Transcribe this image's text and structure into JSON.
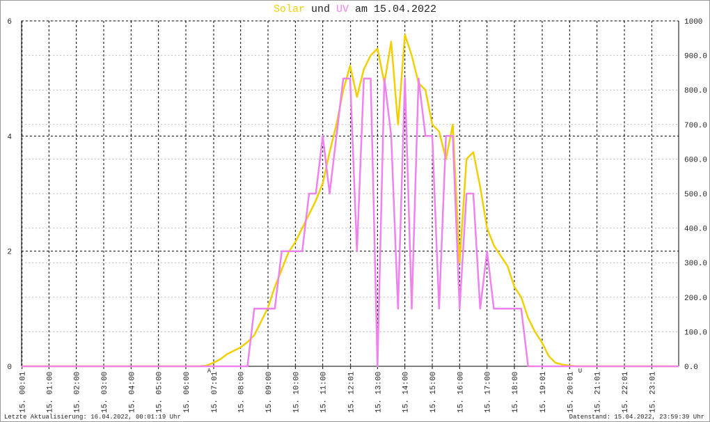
{
  "chart_data": {
    "type": "line",
    "title_join": "und",
    "title_suffix": "am 15.04.2022",
    "x": [
      0,
      6.5,
      6.75,
      7,
      7.25,
      7.5,
      7.75,
      8,
      8.25,
      8.5,
      8.75,
      9,
      9.25,
      9.5,
      9.75,
      10,
      10.25,
      10.5,
      10.75,
      11,
      11.25,
      11.5,
      11.75,
      12,
      12.25,
      12.5,
      12.75,
      13,
      13.25,
      13.5,
      13.75,
      14,
      14.25,
      14.5,
      14.75,
      15,
      15.25,
      15.5,
      15.75,
      16,
      16.25,
      16.5,
      16.75,
      17,
      17.25,
      17.5,
      17.75,
      18,
      18.25,
      18.5,
      18.75,
      19,
      19.25,
      19.5,
      19.75,
      20,
      20.25,
      24
    ],
    "series": [
      {
        "name": "Solar",
        "color": "#f2cf00",
        "axis": "y2",
        "values": [
          0,
          0,
          2,
          10,
          20,
          35,
          45,
          55,
          70,
          90,
          130,
          170,
          230,
          280,
          330,
          360,
          400,
          440,
          480,
          530,
          620,
          700,
          800,
          870,
          780,
          860,
          900,
          920,
          820,
          940,
          700,
          960,
          900,
          820,
          800,
          700,
          680,
          600,
          700,
          300,
          600,
          620,
          520,
          400,
          350,
          320,
          290,
          230,
          200,
          140,
          100,
          70,
          30,
          10,
          5,
          2,
          0,
          0
        ]
      },
      {
        "name": "UV",
        "color": "#ee82ee",
        "values": [
          0,
          0,
          0,
          0,
          0,
          0,
          0,
          0,
          0,
          1,
          1,
          1,
          1,
          2,
          2,
          2,
          2,
          3,
          3,
          4,
          3,
          4,
          5,
          5,
          2,
          5,
          5,
          0,
          5,
          4,
          1,
          5,
          1,
          5,
          4,
          4,
          1,
          4,
          4,
          1,
          3,
          3,
          1,
          2,
          1,
          1,
          1,
          1,
          1,
          0,
          0,
          0,
          0,
          0,
          0,
          0,
          0,
          0
        ]
      }
    ],
    "xlim": [
      0,
      24
    ],
    "xticks": [
      {
        "value": 0.0167,
        "label": "15. 00:01"
      },
      {
        "value": 1,
        "label": "15. 01:00"
      },
      {
        "value": 2,
        "label": "15. 02:00"
      },
      {
        "value": 3,
        "label": "15. 03:00"
      },
      {
        "value": 4,
        "label": "15. 04:00"
      },
      {
        "value": 5,
        "label": "15. 05:00"
      },
      {
        "value": 6,
        "label": "15. 06:00"
      },
      {
        "value": 7.0167,
        "label": "15. 07:01"
      },
      {
        "value": 8,
        "label": "15. 08:00"
      },
      {
        "value": 9,
        "label": "15. 09:00"
      },
      {
        "value": 10,
        "label": "15. 10:00"
      },
      {
        "value": 11,
        "label": "15. 11:00"
      },
      {
        "value": 12.0167,
        "label": "15. 12:01"
      },
      {
        "value": 13,
        "label": "15. 13:00"
      },
      {
        "value": 14,
        "label": "15. 14:00"
      },
      {
        "value": 15,
        "label": "15. 15:00"
      },
      {
        "value": 16,
        "label": "15. 16:00"
      },
      {
        "value": 17,
        "label": "15. 17:00"
      },
      {
        "value": 18,
        "label": "15. 18:00"
      },
      {
        "value": 19.0167,
        "label": "15. 19:01"
      },
      {
        "value": 20.0167,
        "label": "15. 20:01"
      },
      {
        "value": 21.0167,
        "label": "15. 21:01"
      },
      {
        "value": 22.0167,
        "label": "15. 22:01"
      },
      {
        "value": 23.0167,
        "label": "15. 23:01"
      }
    ],
    "ylim": [
      0,
      6
    ],
    "yticks": [
      0,
      2,
      4,
      6
    ],
    "y2lim": [
      0,
      1000
    ],
    "y2ticks": [
      {
        "value": 0,
        "label": "0.0"
      },
      {
        "value": 100,
        "label": "100.0"
      },
      {
        "value": 200,
        "label": "200.0"
      },
      {
        "value": 300,
        "label": "300.0"
      },
      {
        "value": 400,
        "label": "400.0"
      },
      {
        "value": 500,
        "label": "500.0"
      },
      {
        "value": 600,
        "label": "600.0"
      },
      {
        "value": 700,
        "label": "700.0"
      },
      {
        "value": 800,
        "label": "800.0"
      },
      {
        "value": 900,
        "label": "900.0"
      },
      {
        "value": 1000,
        "label": "1000"
      }
    ],
    "grid": true,
    "annotations": [
      {
        "text": "A",
        "x": 6.85,
        "color": "#cc0000"
      },
      {
        "text": "U",
        "x": 20.4,
        "color": "#cc0000"
      }
    ],
    "footer_left": "Letzte Aktualisierung: 16.04.2022, 00:01:19 Uhr",
    "footer_right": "Datenstand: 15.04.2022, 23:59:39 Uhr"
  }
}
